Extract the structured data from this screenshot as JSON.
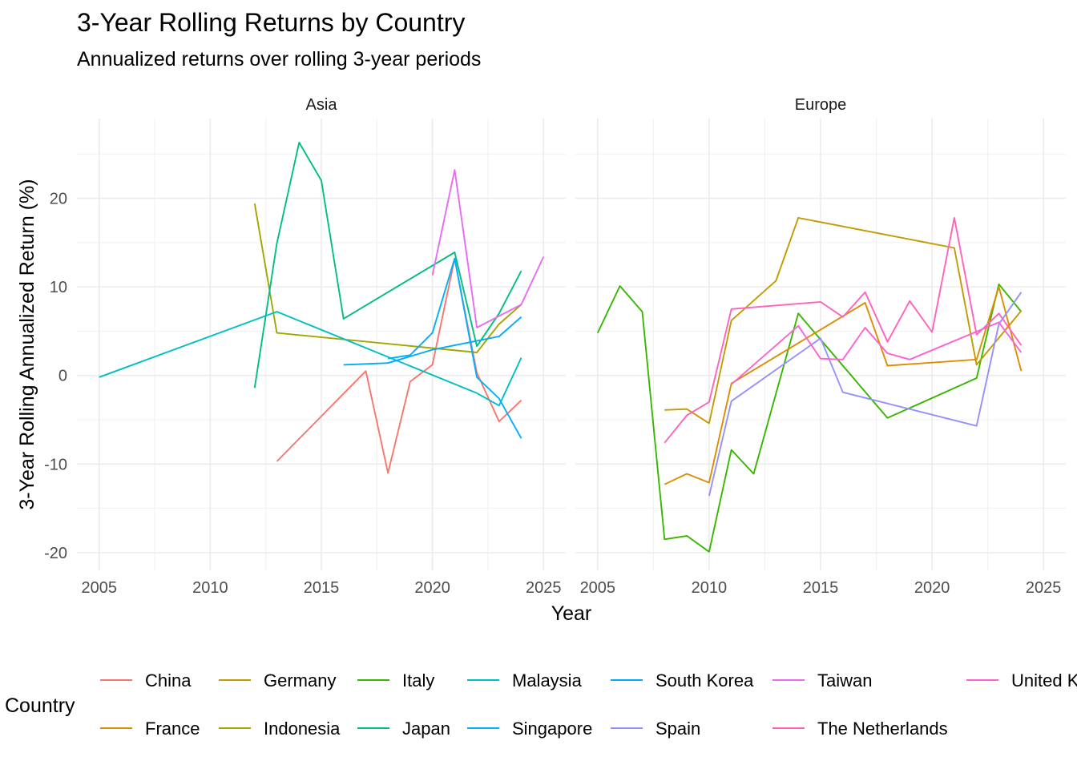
{
  "title": "3-Year Rolling Returns by Country",
  "subtitle": "Annualized returns over rolling 3-year periods",
  "chart_data": {
    "type": "line",
    "title": "3-Year Rolling Returns by Country",
    "subtitle": "Annualized returns over rolling 3-year periods",
    "xlabel": "Year",
    "ylabel": "3-Year Rolling Annualized Return (%)",
    "xlim": [
      2004,
      2026
    ],
    "ylim": [
      -22,
      29
    ],
    "x_ticks": [
      2005,
      2010,
      2015,
      2020,
      2025
    ],
    "y_ticks": [
      -20,
      -10,
      0,
      10,
      20
    ],
    "grid": true,
    "legend": {
      "title": "Country",
      "position": "bottom"
    },
    "facets": [
      {
        "label": "Asia",
        "series": [
          {
            "name": "China",
            "color": "#F8766D",
            "points": [
              [
                2013,
                -9.7
              ],
              [
                2017,
                0.5
              ],
              [
                2018,
                -11.0
              ],
              [
                2019,
                -0.7
              ],
              [
                2020,
                1.2
              ],
              [
                2021,
                13.2
              ],
              [
                2022,
                0.3
              ],
              [
                2023,
                -5.2
              ],
              [
                2024,
                -2.8
              ]
            ]
          },
          {
            "name": "Indonesia",
            "color": "#A3A500",
            "points": [
              [
                2012,
                19.4
              ],
              [
                2013,
                4.8
              ],
              [
                2022,
                2.6
              ],
              [
                2023,
                5.8
              ],
              [
                2024,
                8.0
              ]
            ]
          },
          {
            "name": "Japan",
            "color": "#00BF7D",
            "points": [
              [
                2012,
                -1.4
              ],
              [
                2013,
                14.9
              ],
              [
                2014,
                26.3
              ],
              [
                2015,
                22.0
              ],
              [
                2016,
                6.4
              ],
              [
                2021,
                13.9
              ],
              [
                2022,
                3.3
              ],
              [
                2023,
                7.0
              ],
              [
                2024,
                11.8
              ]
            ]
          },
          {
            "name": "Malaysia",
            "color": "#00BFC4",
            "points": [
              [
                2005,
                -0.2
              ],
              [
                2013,
                7.2
              ],
              [
                2022,
                -2.0
              ],
              [
                2023,
                -3.4
              ],
              [
                2024,
                2.0
              ]
            ]
          },
          {
            "name": "Singapore",
            "color": "#00B0F6",
            "points": [
              [
                2018,
                1.9
              ],
              [
                2019,
                2.3
              ],
              [
                2020,
                4.8
              ],
              [
                2021,
                13.2
              ],
              [
                2022,
                -0.2
              ],
              [
                2023,
                -2.6
              ],
              [
                2024,
                -7.1
              ]
            ]
          },
          {
            "name": "South Korea",
            "color": "#00A9FF",
            "points": [
              [
                2016,
                1.2
              ],
              [
                2018,
                1.4
              ],
              [
                2020,
                2.9
              ],
              [
                2023,
                4.4
              ],
              [
                2024,
                6.6
              ]
            ]
          },
          {
            "name": "Taiwan",
            "color": "#E76BF3",
            "points": [
              [
                2020,
                11.3
              ],
              [
                2021,
                23.2
              ],
              [
                2022,
                5.4
              ],
              [
                2024,
                8.0
              ],
              [
                2025,
                13.4
              ]
            ]
          }
        ]
      },
      {
        "label": "Europe",
        "series": [
          {
            "name": "Italy",
            "color": "#39B600",
            "points": [
              [
                2005,
                4.8
              ],
              [
                2006,
                10.1
              ],
              [
                2007,
                7.2
              ],
              [
                2008,
                -18.5
              ],
              [
                2009,
                -18.1
              ],
              [
                2010,
                -19.9
              ],
              [
                2011,
                -8.4
              ],
              [
                2012,
                -11.1
              ],
              [
                2014,
                7.0
              ],
              [
                2018,
                -4.8
              ],
              [
                2022,
                -0.3
              ],
              [
                2023,
                10.3
              ],
              [
                2024,
                7.2
              ]
            ]
          },
          {
            "name": "Germany",
            "color": "#C49A00",
            "points": [
              [
                2008,
                -3.9
              ],
              [
                2009,
                -3.8
              ],
              [
                2010,
                -5.4
              ],
              [
                2011,
                6.2
              ],
              [
                2013,
                10.7
              ],
              [
                2014,
                17.8
              ],
              [
                2021,
                14.4
              ],
              [
                2022,
                1.2
              ],
              [
                2024,
                7.3
              ]
            ]
          },
          {
            "name": "France",
            "color": "#DB8E00",
            "points": [
              [
                2008,
                -12.3
              ],
              [
                2009,
                -11.1
              ],
              [
                2010,
                -12.1
              ],
              [
                2011,
                -0.9
              ],
              [
                2017,
                8.2
              ],
              [
                2018,
                1.1
              ],
              [
                2022,
                1.8
              ],
              [
                2023,
                10.0
              ],
              [
                2024,
                0.5
              ]
            ]
          },
          {
            "name": "Spain",
            "color": "#9590FF",
            "points": [
              [
                2010,
                -13.6
              ],
              [
                2011,
                -2.9
              ],
              [
                2015,
                4.2
              ],
              [
                2016,
                -1.9
              ],
              [
                2022,
                -5.7
              ],
              [
                2023,
                5.8
              ],
              [
                2024,
                9.4
              ]
            ]
          },
          {
            "name": "The Netherlands",
            "color": "#FF62BC",
            "points": [
              [
                2008,
                -7.6
              ],
              [
                2009,
                -4.5
              ],
              [
                2010,
                -3.0
              ],
              [
                2011,
                7.5
              ],
              [
                2015,
                8.3
              ],
              [
                2016,
                6.6
              ],
              [
                2017,
                9.4
              ],
              [
                2018,
                3.8
              ],
              [
                2019,
                8.4
              ],
              [
                2020,
                4.9
              ],
              [
                2021,
                17.8
              ],
              [
                2022,
                4.6
              ],
              [
                2023,
                7.0
              ],
              [
                2024,
                3.4
              ]
            ]
          },
          {
            "name": "United Kingdom",
            "color": "#FC61D5",
            "points": [
              [
                2011,
                -1.0
              ],
              [
                2014,
                5.6
              ],
              [
                2015,
                1.9
              ],
              [
                2016,
                1.8
              ],
              [
                2017,
                5.4
              ],
              [
                2018,
                2.5
              ],
              [
                2019,
                1.8
              ],
              [
                2023,
                6.0
              ],
              [
                2024,
                2.6
              ]
            ]
          }
        ]
      }
    ],
    "legend_entries": [
      {
        "name": "China",
        "color": "#F8766D"
      },
      {
        "name": "France",
        "color": "#DB8E00"
      },
      {
        "name": "Germany",
        "color": "#C49A00"
      },
      {
        "name": "Indonesia",
        "color": "#A3A500"
      },
      {
        "name": "Italy",
        "color": "#39B600"
      },
      {
        "name": "Japan",
        "color": "#00BF7D"
      },
      {
        "name": "Malaysia",
        "color": "#00BFC4"
      },
      {
        "name": "Singapore",
        "color": "#00B0F6"
      },
      {
        "name": "South Korea",
        "color": "#00A9FF"
      },
      {
        "name": "Spain",
        "color": "#9590FF"
      },
      {
        "name": "Taiwan",
        "color": "#E76BF3"
      },
      {
        "name": "The Netherlands",
        "color": "#FF62BC"
      },
      {
        "name": "United K",
        "color": "#FC61D5"
      }
    ]
  }
}
